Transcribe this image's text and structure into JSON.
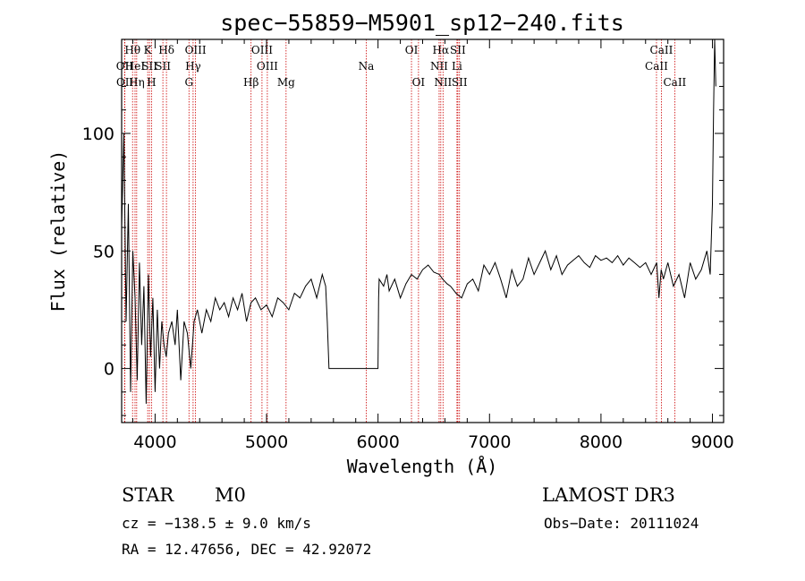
{
  "chart_data": {
    "type": "line",
    "title": "spec−55859−M5901_sp12−240.fits",
    "xlabel": "Wavelength (Å)",
    "ylabel": "Flux (relative)",
    "xlim": [
      3700,
      9100
    ],
    "ylim": [
      -23,
      140
    ],
    "xticks": [
      {
        "value": 4000,
        "label": "4000"
      },
      {
        "value": 5000,
        "label": "5000"
      },
      {
        "value": 6000,
        "label": "6000"
      },
      {
        "value": 7000,
        "label": "7000"
      },
      {
        "value": 8000,
        "label": "8000"
      },
      {
        "value": 9000,
        "label": "9000"
      }
    ],
    "yticks": [
      {
        "value": 0,
        "label": "0"
      },
      {
        "value": 50,
        "label": "50"
      },
      {
        "value": 100,
        "label": "100"
      }
    ],
    "spectrum": {
      "name": "flux",
      "x": [
        3700,
        3720,
        3740,
        3760,
        3780,
        3800,
        3820,
        3840,
        3860,
        3880,
        3900,
        3920,
        3940,
        3960,
        3980,
        4000,
        4020,
        4040,
        4060,
        4080,
        4100,
        4120,
        4150,
        4180,
        4200,
        4230,
        4260,
        4290,
        4320,
        4350,
        4380,
        4420,
        4460,
        4500,
        4540,
        4580,
        4620,
        4660,
        4700,
        4740,
        4780,
        4820,
        4860,
        4900,
        4950,
        5000,
        5050,
        5100,
        5150,
        5200,
        5250,
        5300,
        5350,
        5400,
        5450,
        5500,
        5530,
        5545,
        5560,
        5700,
        5900,
        6000,
        6005,
        6010,
        6050,
        6080,
        6100,
        6150,
        6200,
        6250,
        6300,
        6350,
        6400,
        6450,
        6500,
        6550,
        6580,
        6620,
        6650,
        6700,
        6750,
        6800,
        6850,
        6900,
        6950,
        7000,
        7050,
        7100,
        7150,
        7200,
        7250,
        7300,
        7350,
        7400,
        7450,
        7500,
        7550,
        7600,
        7650,
        7700,
        7750,
        7800,
        7850,
        7900,
        7950,
        8000,
        8050,
        8100,
        8150,
        8200,
        8250,
        8300,
        8350,
        8400,
        8450,
        8500,
        8520,
        8540,
        8560,
        8600,
        8650,
        8700,
        8750,
        8800,
        8850,
        8900,
        8950,
        8980,
        9000,
        9010,
        9020,
        9030
      ],
      "y": [
        60,
        100,
        20,
        70,
        -10,
        50,
        30,
        -5,
        45,
        10,
        35,
        -15,
        40,
        5,
        30,
        -10,
        25,
        0,
        20,
        10,
        5,
        15,
        20,
        10,
        25,
        -5,
        20,
        15,
        0,
        20,
        25,
        15,
        25,
        20,
        30,
        25,
        28,
        22,
        30,
        25,
        32,
        20,
        28,
        30,
        25,
        27,
        22,
        30,
        28,
        25,
        32,
        30,
        35,
        38,
        30,
        40,
        35,
        20,
        0,
        0,
        0,
        0,
        30,
        38,
        35,
        40,
        33,
        38,
        30,
        36,
        40,
        38,
        42,
        44,
        41,
        40,
        38,
        36,
        35,
        32,
        30,
        36,
        38,
        33,
        44,
        40,
        45,
        38,
        30,
        42,
        35,
        38,
        47,
        40,
        45,
        50,
        42,
        48,
        40,
        44,
        46,
        48,
        45,
        43,
        48,
        46,
        47,
        45,
        48,
        44,
        47,
        45,
        43,
        45,
        40,
        45,
        30,
        42,
        38,
        45,
        35,
        40,
        30,
        45,
        38,
        42,
        50,
        40,
        70,
        110,
        140,
        120
      ]
    },
    "spectral_lines": [
      {
        "name": "Hθ",
        "x": 3798,
        "row": 1
      },
      {
        "name": "OII",
        "x": 3727,
        "row": 2
      },
      {
        "name": "OII",
        "x": 3729,
        "row": 3
      },
      {
        "name": "HeI",
        "x": 3820,
        "row": 2
      },
      {
        "name": "Hη",
        "x": 3835,
        "row": 3
      },
      {
        "name": "K",
        "x": 3934,
        "row": 1
      },
      {
        "name": "SII",
        "x": 3950,
        "row": 2
      },
      {
        "name": "H",
        "x": 3968,
        "row": 3
      },
      {
        "name": "Hδ",
        "x": 4102,
        "row": 1
      },
      {
        "name": "SII",
        "x": 4070,
        "row": 2
      },
      {
        "name": "OIII",
        "x": 4363,
        "row": 1
      },
      {
        "name": "Hγ",
        "x": 4341,
        "row": 2
      },
      {
        "name": "G",
        "x": 4304,
        "row": 3
      },
      {
        "name": "OIII",
        "x": 4959,
        "row": 1
      },
      {
        "name": "OIII",
        "x": 5007,
        "row": 2
      },
      {
        "name": "Hβ",
        "x": 4861,
        "row": 3
      },
      {
        "name": "Mg",
        "x": 5175,
        "row": 3
      },
      {
        "name": "Na",
        "x": 5894,
        "row": 2
      },
      {
        "name": "OI",
        "x": 6300,
        "row": 1
      },
      {
        "name": "OI",
        "x": 6363,
        "row": 3
      },
      {
        "name": "Hα",
        "x": 6563,
        "row": 1
      },
      {
        "name": "NII",
        "x": 6548,
        "row": 2
      },
      {
        "name": "NII",
        "x": 6583,
        "row": 3
      },
      {
        "name": "SII",
        "x": 6716,
        "row": 1
      },
      {
        "name": "Li",
        "x": 6708,
        "row": 2
      },
      {
        "name": "SII",
        "x": 6731,
        "row": 3
      },
      {
        "name": "CaII",
        "x": 8542,
        "row": 1
      },
      {
        "name": "CaII",
        "x": 8498,
        "row": 2
      },
      {
        "name": "CaII",
        "x": 8662,
        "row": 3
      }
    ]
  },
  "info": {
    "object_class": "STAR",
    "subclass": "M0",
    "survey": "LAMOST DR3",
    "velocity": "cz = −138.5 ± 9.0 km/s",
    "obs_date": "Obs−Date: 20111024",
    "coordinates": "RA =  12.47656, DEC =  42.92072"
  },
  "colors": {
    "spectrum": "#000000",
    "line_marker": "#cc0000",
    "axes": "#000000"
  }
}
